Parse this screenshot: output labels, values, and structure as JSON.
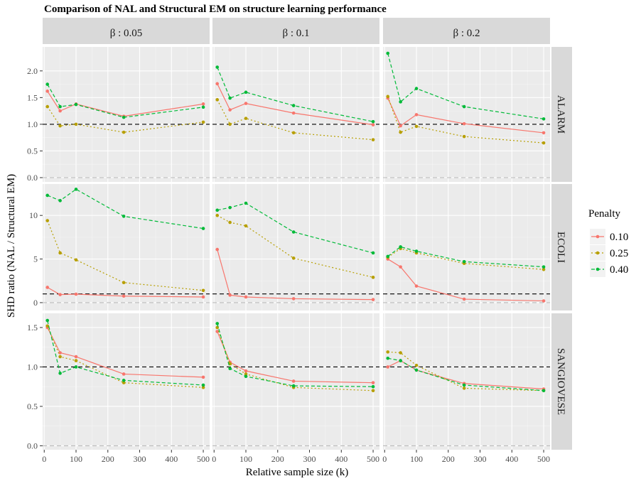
{
  "chart_data": {
    "type": "line",
    "title": "Comparison of NAL and Structural EM on structure learning performance",
    "xlabel": "Relative sample size (k)",
    "ylabel": "SHD ratio (NAL / Structural EM)",
    "col_facets": [
      "β : 0.05",
      "β : 0.1",
      "β : 0.2"
    ],
    "row_facets": [
      "ALARM",
      "ECOLI",
      "SANGIOVESE"
    ],
    "x": [
      10,
      50,
      100,
      250,
      500
    ],
    "xlim": [
      -5,
      520
    ],
    "xticks": [
      0,
      100,
      200,
      300,
      400,
      500
    ],
    "xtick_labels": [
      "0",
      "100",
      "200",
      "300",
      "400",
      "500"
    ],
    "rows": [
      {
        "name": "ALARM",
        "ylim": [
          -0.08,
          2.45
        ],
        "yticks": [
          0,
          0.5,
          1,
          1.5,
          2
        ],
        "ytick_labels": [
          "0.0",
          "0.5",
          "1.0",
          "1.5",
          "2.0"
        ]
      },
      {
        "name": "ECOLI",
        "ylim": [
          -0.9,
          13.6
        ],
        "yticks": [
          0,
          5,
          10
        ],
        "ytick_labels": [
          "0",
          "5",
          "10"
        ]
      },
      {
        "name": "SANGIOVESE",
        "ylim": [
          -0.05,
          1.68
        ],
        "yticks": [
          0,
          0.5,
          1,
          1.5
        ],
        "ytick_labels": [
          "0.0",
          "0.5",
          "1.0",
          "1.5"
        ]
      }
    ],
    "reference_lines": [
      {
        "y": 1,
        "style": "dashed",
        "color": "#000000"
      },
      {
        "y": 0,
        "style": "dashed",
        "color": "#bbbbbb"
      }
    ],
    "legend": {
      "title": "Penalty",
      "position": "right",
      "entries": [
        {
          "label": "0.10",
          "color": "#F8766D",
          "dash": ""
        },
        {
          "label": "0.25",
          "color": "#B79F00",
          "dash": "2,3"
        },
        {
          "label": "0.40",
          "color": "#00BA38",
          "dash": "5,3"
        }
      ]
    },
    "grid": true,
    "panels": [
      {
        "row": 0,
        "col": 0,
        "series": [
          [
            1.62,
            1.25,
            1.38,
            1.15,
            1.38
          ],
          [
            1.33,
            0.97,
            1.0,
            0.85,
            1.04
          ],
          [
            1.75,
            1.33,
            1.37,
            1.13,
            1.32
          ]
        ]
      },
      {
        "row": 0,
        "col": 1,
        "series": [
          [
            1.76,
            1.27,
            1.39,
            1.21,
            0.99
          ],
          [
            1.46,
            1.0,
            1.11,
            0.84,
            0.71
          ],
          [
            2.07,
            1.49,
            1.6,
            1.35,
            1.05
          ]
        ]
      },
      {
        "row": 0,
        "col": 2,
        "series": [
          [
            1.49,
            0.97,
            1.18,
            1.01,
            0.84
          ],
          [
            1.52,
            0.85,
            0.96,
            0.77,
            0.65
          ],
          [
            2.33,
            1.42,
            1.67,
            1.33,
            1.1
          ]
        ]
      },
      {
        "row": 1,
        "col": 0,
        "series": [
          [
            1.75,
            0.92,
            0.97,
            0.75,
            0.65
          ],
          [
            9.4,
            5.7,
            4.9,
            2.3,
            1.4
          ],
          [
            12.3,
            11.7,
            13.0,
            9.9,
            8.5
          ]
        ]
      },
      {
        "row": 1,
        "col": 1,
        "series": [
          [
            6.1,
            0.86,
            0.65,
            0.45,
            0.35
          ],
          [
            10.0,
            9.2,
            8.8,
            5.1,
            2.9
          ],
          [
            10.6,
            10.9,
            11.4,
            8.1,
            5.7
          ]
        ]
      },
      {
        "row": 1,
        "col": 2,
        "series": [
          [
            5.0,
            4.1,
            1.9,
            0.4,
            0.2
          ],
          [
            5.2,
            6.2,
            5.7,
            4.5,
            3.8
          ],
          [
            5.3,
            6.4,
            5.9,
            4.7,
            4.1
          ]
        ]
      },
      {
        "row": 2,
        "col": 0,
        "series": [
          [
            1.5,
            1.18,
            1.13,
            0.91,
            0.87
          ],
          [
            1.52,
            1.13,
            1.08,
            0.8,
            0.74
          ],
          [
            1.59,
            0.92,
            1.0,
            0.83,
            0.77
          ]
        ]
      },
      {
        "row": 2,
        "col": 1,
        "series": [
          [
            1.45,
            1.06,
            0.95,
            0.82,
            0.8
          ],
          [
            1.5,
            1.04,
            0.91,
            0.74,
            0.7
          ],
          [
            1.55,
            0.98,
            0.88,
            0.76,
            0.75
          ]
        ]
      },
      {
        "row": 2,
        "col": 2,
        "series": [
          [
            1.0,
            1.08,
            0.96,
            0.79,
            0.72
          ],
          [
            1.19,
            1.18,
            1.02,
            0.73,
            0.7
          ],
          [
            1.11,
            1.08,
            0.96,
            0.77,
            0.7
          ]
        ]
      }
    ]
  }
}
